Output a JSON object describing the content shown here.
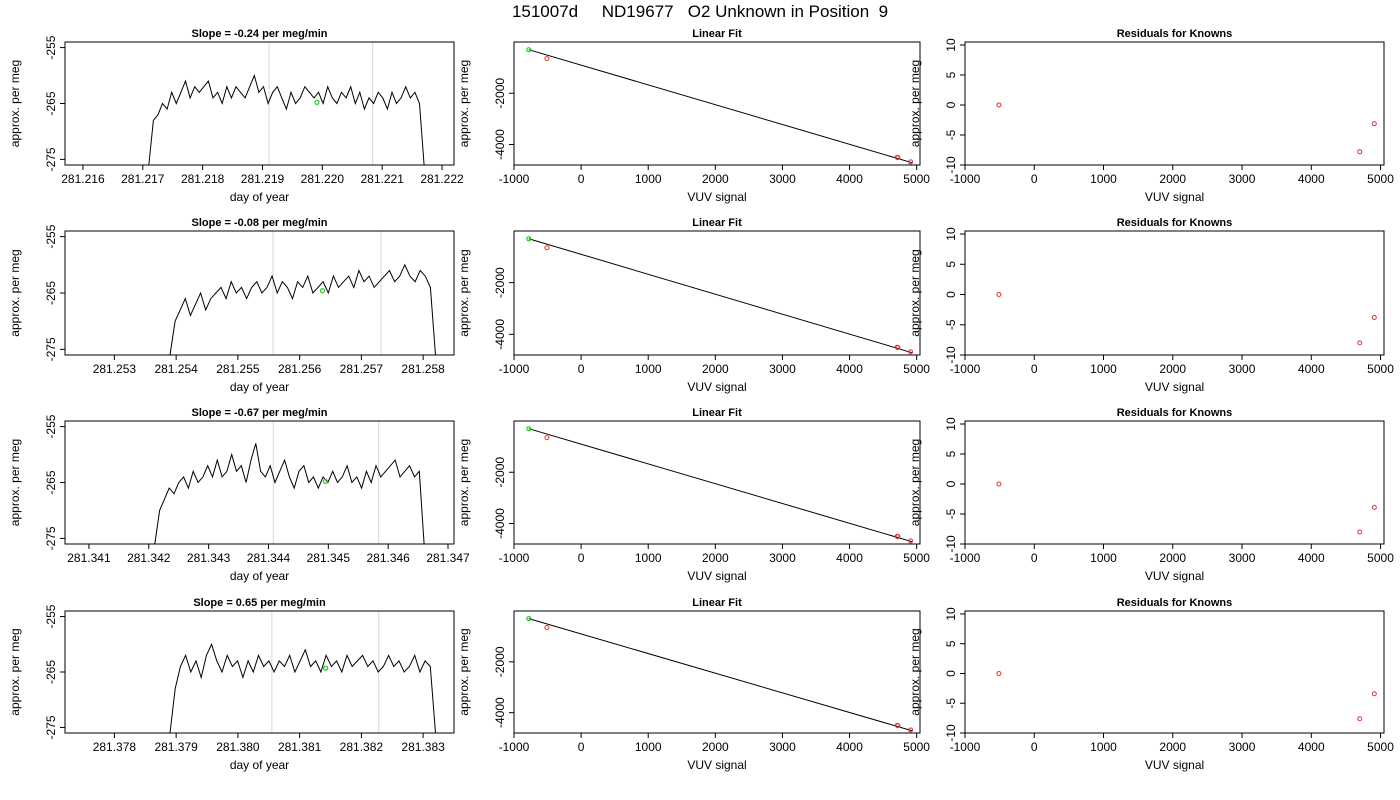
{
  "figure": {
    "title": "151007d     ND19677   O2 Unknown in Position  9"
  },
  "colors": {
    "signal": "#000000",
    "marker": "#dddddd",
    "known": "#dd3333",
    "unknown": "#22cc22",
    "fit": "#000000"
  },
  "chart_data": [
    {
      "type": "line",
      "row": 0,
      "col": 0,
      "title": "Slope =  -0.24  per meg/min",
      "xlabel": "day of year",
      "ylabel": "approx. per meg",
      "xlim": [
        281.2157,
        281.2222
      ],
      "ylim": [
        -276,
        -254
      ],
      "xticks": [
        "281.216",
        "281.217",
        "281.218",
        "281.219",
        "281.220",
        "281.221",
        "281.222"
      ],
      "yticks": [
        "-255",
        "-265",
        "-275"
      ],
      "markers": [
        281.21911,
        281.22084
      ],
      "trace_start": 281.2171,
      "trace_end": 281.2217,
      "trace": [
        -276,
        -268,
        -267,
        -265,
        -266,
        -263,
        -265,
        -263,
        -261,
        -264,
        -262,
        -263,
        -262,
        -261,
        -264,
        -263,
        -265,
        -262,
        -264,
        -262,
        -263,
        -264,
        -262,
        -260,
        -263,
        -262,
        -265,
        -263,
        -262,
        -264,
        -266,
        -263,
        -265,
        -264,
        -262,
        -263,
        -264,
        -263,
        -265,
        -262,
        -264,
        -265,
        -263,
        -264,
        -262,
        -265,
        -263,
        -266,
        -264,
        -265,
        -263,
        -264,
        -266,
        -263,
        -265,
        -264,
        -262,
        -264,
        -263,
        -265,
        -276
      ],
      "unknown_point": [
        281.21991,
        -264.8
      ]
    },
    {
      "type": "scatter",
      "row": 0,
      "col": 1,
      "title": "Linear Fit",
      "xlabel": "VUV signal",
      "ylabel": "approx. per meg",
      "xlim": [
        -1000,
        5050
      ],
      "ylim": [
        -4800,
        0
      ],
      "xticks": [
        "-1000",
        "0",
        "1000",
        "2000",
        "3000",
        "4000",
        "5000"
      ],
      "yticks": [
        "-2000",
        "-4000"
      ],
      "knowns": [
        [
          -510,
          -650
        ],
        [
          4710,
          -4500
        ],
        [
          4720,
          -4510
        ],
        [
          4910,
          -4680
        ]
      ],
      "unknowns": [
        [
          -780,
          -300
        ]
      ],
      "fit_line": [
        [
          -780,
          -300
        ],
        [
          4930,
          -4710
        ]
      ]
    },
    {
      "type": "scatter",
      "row": 0,
      "col": 2,
      "title": "Residuals for Knowns",
      "xlabel": "VUV signal",
      "ylabel": "approx. per meg",
      "xlim": [
        -1000,
        5050
      ],
      "ylim": [
        -10,
        10.5
      ],
      "xticks": [
        "-1000",
        "0",
        "1000",
        "2000",
        "3000",
        "4000",
        "5000"
      ],
      "yticks": [
        "10",
        "5",
        "0",
        "-5",
        "-10"
      ],
      "points": [
        [
          -510,
          0
        ],
        [
          4700,
          -7.8
        ],
        [
          4910,
          -3.1
        ]
      ]
    },
    {
      "type": "line",
      "row": 1,
      "col": 0,
      "title": "Slope =  -0.08  per meg/min",
      "xlabel": "day of year",
      "ylabel": "approx. per meg",
      "xlim": [
        281.2522,
        281.2585
      ],
      "ylim": [
        -276,
        -254
      ],
      "xticks": [
        "281.253",
        "281.254",
        "281.255",
        "281.256",
        "281.257",
        "281.258"
      ],
      "yticks": [
        "-255",
        "-265",
        "-275"
      ],
      "markers": [
        281.25557,
        281.25732
      ],
      "trace_start": 281.2539,
      "trace_end": 281.2582,
      "trace": [
        -276,
        -270,
        -268,
        -266,
        -269,
        -267,
        -265,
        -268,
        -266,
        -265,
        -264,
        -266,
        -263,
        -265,
        -264,
        -266,
        -264,
        -263,
        -265,
        -264,
        -262,
        -265,
        -263,
        -264,
        -266,
        -263,
        -264,
        -262,
        -265,
        -264,
        -263,
        -265,
        -262,
        -264,
        -263,
        -262,
        -264,
        -261,
        -263,
        -262,
        -264,
        -263,
        -262,
        -261,
        -263,
        -262,
        -260,
        -262,
        -263,
        -261,
        -262,
        -264,
        -276
      ],
      "unknown_point": [
        281.25637,
        -264.6
      ]
    },
    {
      "type": "scatter",
      "row": 1,
      "col": 1,
      "title": "Linear Fit",
      "xlabel": "VUV signal",
      "ylabel": "approx. per meg",
      "xlim": [
        -1000,
        5050
      ],
      "ylim": [
        -4800,
        0
      ],
      "xticks": [
        "-1000",
        "0",
        "1000",
        "2000",
        "3000",
        "4000",
        "5000"
      ],
      "yticks": [
        "-2000",
        "-4000"
      ],
      "knowns": [
        [
          -510,
          -650
        ],
        [
          4710,
          -4500
        ],
        [
          4720,
          -4510
        ],
        [
          4910,
          -4680
        ]
      ],
      "unknowns": [
        [
          -780,
          -300
        ]
      ],
      "fit_line": [
        [
          -780,
          -300
        ],
        [
          4930,
          -4710
        ]
      ]
    },
    {
      "type": "scatter",
      "row": 1,
      "col": 2,
      "title": "Residuals for Knowns",
      "xlabel": "VUV signal",
      "ylabel": "approx. per meg",
      "xlim": [
        -1000,
        5050
      ],
      "ylim": [
        -10,
        10.5
      ],
      "xticks": [
        "-1000",
        "0",
        "1000",
        "2000",
        "3000",
        "4000",
        "5000"
      ],
      "yticks": [
        "10",
        "5",
        "0",
        "-5",
        "-10"
      ],
      "points": [
        [
          -510,
          0
        ],
        [
          4700,
          -8.0
        ],
        [
          4910,
          -3.8
        ]
      ]
    },
    {
      "type": "line",
      "row": 2,
      "col": 0,
      "title": "Slope =  -0.67  per meg/min",
      "xlabel": "day of year",
      "ylabel": "approx. per meg",
      "xlim": [
        281.3406,
        281.3471
      ],
      "ylim": [
        -276,
        -254
      ],
      "xticks": [
        "281.341",
        "281.342",
        "281.343",
        "281.344",
        "281.345",
        "281.346",
        "281.347"
      ],
      "yticks": [
        "-255",
        "-265",
        "-275"
      ],
      "markers": [
        281.34408,
        281.34584
      ],
      "trace_start": 281.3421,
      "trace_end": 281.3466,
      "trace": [
        -276,
        -270,
        -268,
        -266,
        -267,
        -265,
        -264,
        -266,
        -263,
        -265,
        -264,
        -262,
        -264,
        -261,
        -264,
        -263,
        -260,
        -263,
        -262,
        -265,
        -261,
        -258,
        -263,
        -264,
        -262,
        -265,
        -263,
        -261,
        -264,
        -266,
        -263,
        -262,
        -265,
        -264,
        -266,
        -264,
        -265,
        -263,
        -265,
        -264,
        -262,
        -265,
        -264,
        -266,
        -263,
        -265,
        -262,
        -264,
        -263,
        -262,
        -261,
        -264,
        -263,
        -262,
        -264,
        -263,
        -276
      ],
      "unknown_point": [
        281.34495,
        -264.8
      ]
    },
    {
      "type": "scatter",
      "row": 2,
      "col": 1,
      "title": "Linear Fit",
      "xlabel": "VUV signal",
      "ylabel": "approx. per meg",
      "xlim": [
        -1000,
        5050
      ],
      "ylim": [
        -4800,
        0
      ],
      "xticks": [
        "-1000",
        "0",
        "1000",
        "2000",
        "3000",
        "4000",
        "5000"
      ],
      "yticks": [
        "-2000",
        "-4000"
      ],
      "knowns": [
        [
          -510,
          -650
        ],
        [
          4710,
          -4500
        ],
        [
          4720,
          -4510
        ],
        [
          4910,
          -4680
        ]
      ],
      "unknowns": [
        [
          -780,
          -300
        ]
      ],
      "fit_line": [
        [
          -780,
          -300
        ],
        [
          4930,
          -4710
        ]
      ]
    },
    {
      "type": "scatter",
      "row": 2,
      "col": 2,
      "title": "Residuals for Knowns",
      "xlabel": "VUV signal",
      "ylabel": "approx. per meg",
      "xlim": [
        -1000,
        5050
      ],
      "ylim": [
        -10,
        10.5
      ],
      "xticks": [
        "-1000",
        "0",
        "1000",
        "2000",
        "3000",
        "4000",
        "5000"
      ],
      "yticks": [
        "10",
        "5",
        "0",
        "-5",
        "-10"
      ],
      "points": [
        [
          -510,
          0
        ],
        [
          4700,
          -8.0
        ],
        [
          4910,
          -3.9
        ]
      ]
    },
    {
      "type": "line",
      "row": 3,
      "col": 0,
      "title": "Slope =  0.65  per meg/min",
      "xlabel": "day of year",
      "ylabel": "approx. per meg",
      "xlim": [
        281.3772,
        281.3835
      ],
      "ylim": [
        -276,
        -254
      ],
      "xticks": [
        "281.378",
        "281.379",
        "281.380",
        "281.381",
        "281.382",
        "281.383"
      ],
      "yticks": [
        "-255",
        "-265",
        "-275"
      ],
      "markers": [
        281.38055,
        281.38228
      ],
      "trace_start": 281.3789,
      "trace_end": 281.3832,
      "trace": [
        -276,
        -268,
        -264,
        -262,
        -265,
        -263,
        -266,
        -262,
        -260,
        -263,
        -265,
        -262,
        -264,
        -263,
        -266,
        -263,
        -265,
        -262,
        -264,
        -263,
        -265,
        -263,
        -264,
        -262,
        -265,
        -263,
        -261,
        -264,
        -263,
        -265,
        -262,
        -264,
        -263,
        -265,
        -262,
        -264,
        -263,
        -262,
        -264,
        -263,
        -265,
        -264,
        -262,
        -264,
        -263,
        -265,
        -264,
        -262,
        -265,
        -263,
        -264,
        -276
      ],
      "unknown_point": [
        281.38142,
        -264.3
      ]
    },
    {
      "type": "scatter",
      "row": 3,
      "col": 1,
      "title": "Linear Fit",
      "xlabel": "VUV signal",
      "ylabel": "approx. per meg",
      "xlim": [
        -1000,
        5050
      ],
      "ylim": [
        -4800,
        0
      ],
      "xticks": [
        "-1000",
        "0",
        "1000",
        "2000",
        "3000",
        "4000",
        "5000"
      ],
      "yticks": [
        "-2000",
        "-4000"
      ],
      "knowns": [
        [
          -510,
          -650
        ],
        [
          4710,
          -4500
        ],
        [
          4720,
          -4510
        ],
        [
          4910,
          -4680
        ]
      ],
      "unknowns": [
        [
          -780,
          -300
        ]
      ],
      "fit_line": [
        [
          -780,
          -300
        ],
        [
          4930,
          -4710
        ]
      ]
    },
    {
      "type": "scatter",
      "row": 3,
      "col": 2,
      "title": "Residuals for Knowns",
      "xlabel": "VUV signal",
      "ylabel": "approx. per meg",
      "xlim": [
        -1000,
        5050
      ],
      "ylim": [
        -10,
        10.5
      ],
      "xticks": [
        "-1000",
        "0",
        "1000",
        "2000",
        "3000",
        "4000",
        "5000"
      ],
      "yticks": [
        "10",
        "5",
        "0",
        "-5",
        "-10"
      ],
      "points": [
        [
          -510,
          0
        ],
        [
          4700,
          -7.6
        ],
        [
          4910,
          -3.4
        ]
      ]
    }
  ]
}
